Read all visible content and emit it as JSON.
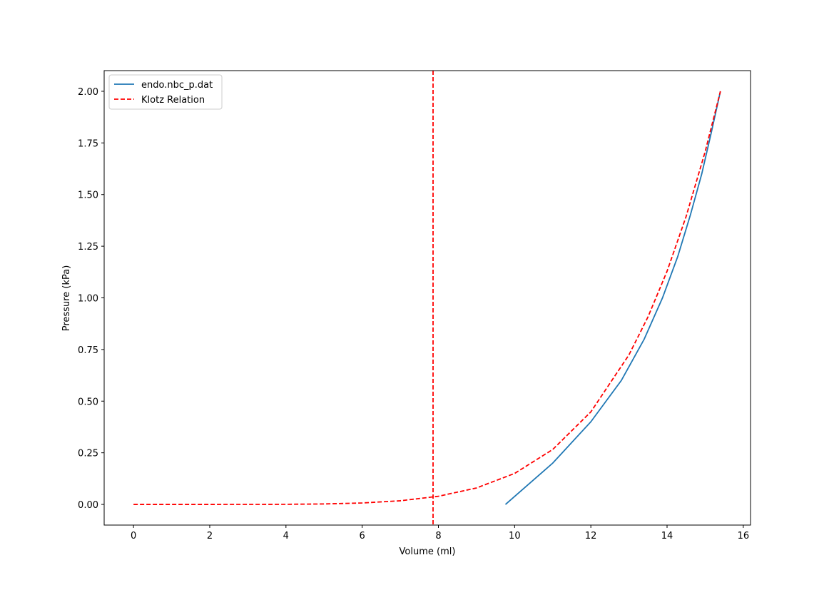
{
  "chart_data": {
    "type": "line",
    "xlabel": "Volume (ml)",
    "ylabel": "Pressure (kPa)",
    "xlim": [
      -0.77,
      16.19
    ],
    "ylim": [
      -0.1,
      2.1
    ],
    "xticks": [
      0,
      2,
      4,
      6,
      8,
      10,
      12,
      14,
      16
    ],
    "yticks": [
      {
        "value": 0,
        "label": "0.00"
      },
      0.25,
      {
        "value": 0.5,
        "label": "0.50"
      },
      0.75,
      {
        "value": 1,
        "label": "1.00"
      },
      1.25,
      {
        "value": 1.5,
        "label": "1.50"
      },
      1.75,
      {
        "value": 2,
        "label": "2.00"
      }
    ],
    "legend": "upper left",
    "series": [
      {
        "name": "endo.nbc_p.dat",
        "color": "#1f77b4",
        "style": "solid",
        "x": [
          9.76,
          11.0,
          12.0,
          12.8,
          13.4,
          13.88,
          14.28,
          14.61,
          14.91,
          15.16,
          15.4
        ],
        "values": [
          0,
          0.2,
          0.4,
          0.6,
          0.8,
          1.0,
          1.2,
          1.4,
          1.6,
          1.8,
          2.0
        ]
      },
      {
        "name": "Klotz Relation",
        "color": "#ff0000",
        "style": "dashed",
        "x": [
          0,
          1,
          2,
          3,
          4,
          5,
          6,
          7,
          8,
          9,
          10,
          11,
          12,
          13,
          13.5,
          14,
          14.5,
          15,
          15.4
        ],
        "values": [
          0,
          0,
          0,
          0.0001,
          0.0006,
          0.0023,
          0.007,
          0.0177,
          0.0395,
          0.0797,
          0.15,
          0.266,
          0.448,
          0.724,
          0.908,
          1.129,
          1.394,
          1.708,
          2.0
        ]
      }
    ],
    "vline": {
      "x": 7.86,
      "color": "#ff0000",
      "style": "dashed"
    }
  }
}
